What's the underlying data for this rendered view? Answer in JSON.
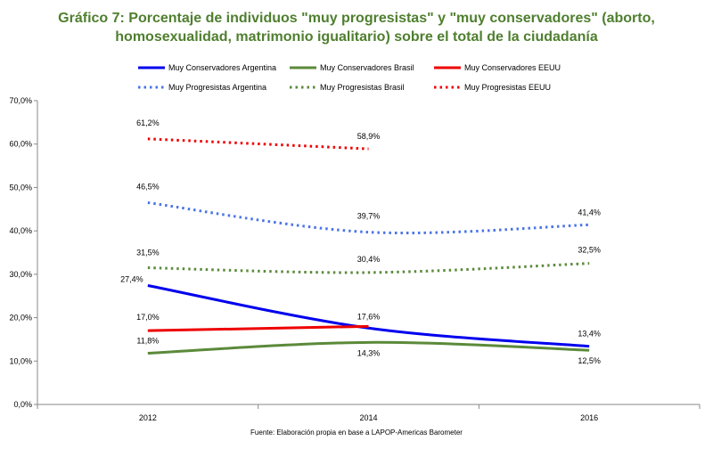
{
  "title_lines": [
    "Gráfico 7: Porcentaje de individuos \"muy progresistas\" y \"muy conservadores\" (aborto,",
    "homosexualidad, matrimonio igualitario) sobre el total de la ciudadanía"
  ],
  "source": "Fuente: Elaboración propia en base a LAPOP-Americas Barometer",
  "chart_data": {
    "type": "line",
    "title": "Gráfico 7: Porcentaje de individuos \"muy progresistas\" y \"muy conservadores\" (aborto, homosexualidad, matrimonio igualitario) sobre el total de la ciudadanía",
    "x": [
      "2012",
      "2014",
      "2016"
    ],
    "ylim": [
      0,
      70
    ],
    "yticks": [
      "0,0%",
      "10,0%",
      "20,0%",
      "30,0%",
      "40,0%",
      "50,0%",
      "60,0%",
      "70,0%"
    ],
    "grid": false,
    "legend_position": "top",
    "series": [
      {
        "name": "Muy Conservadores Argentina",
        "values": [
          27.4,
          17.6,
          13.4
        ],
        "labels": [
          "27,4%",
          "17,6%",
          "13,4%"
        ],
        "color": "#0000ee",
        "style": "solid"
      },
      {
        "name": "Muy Conservadores Brasil",
        "values": [
          11.8,
          14.3,
          12.5
        ],
        "labels": [
          "11,8%",
          "14,3%",
          "12,5%"
        ],
        "color": "#5b8a3a",
        "style": "solid"
      },
      {
        "name": "Muy Conservadores EEUU",
        "values": [
          17.0,
          18.0,
          null
        ],
        "labels": [
          "17,0%",
          "",
          ""
        ],
        "color": "#ee0000",
        "style": "solid"
      },
      {
        "name": "Muy Progresistas Argentina",
        "values": [
          46.5,
          39.7,
          41.4
        ],
        "labels": [
          "46,5%",
          "39,7%",
          "41,4%"
        ],
        "color": "#4a74e8",
        "style": "dotted"
      },
      {
        "name": "Muy Progresistas Brasil",
        "values": [
          31.5,
          30.4,
          32.5
        ],
        "labels": [
          "31,5%",
          "30,4%",
          "32,5%"
        ],
        "color": "#5b8a3a",
        "style": "dotted"
      },
      {
        "name": "Muy Progresistas EEUU",
        "values": [
          61.2,
          58.9,
          null
        ],
        "labels": [
          "61,2%",
          "58,9%",
          ""
        ],
        "color": "#ee0000",
        "style": "dotted"
      }
    ]
  }
}
